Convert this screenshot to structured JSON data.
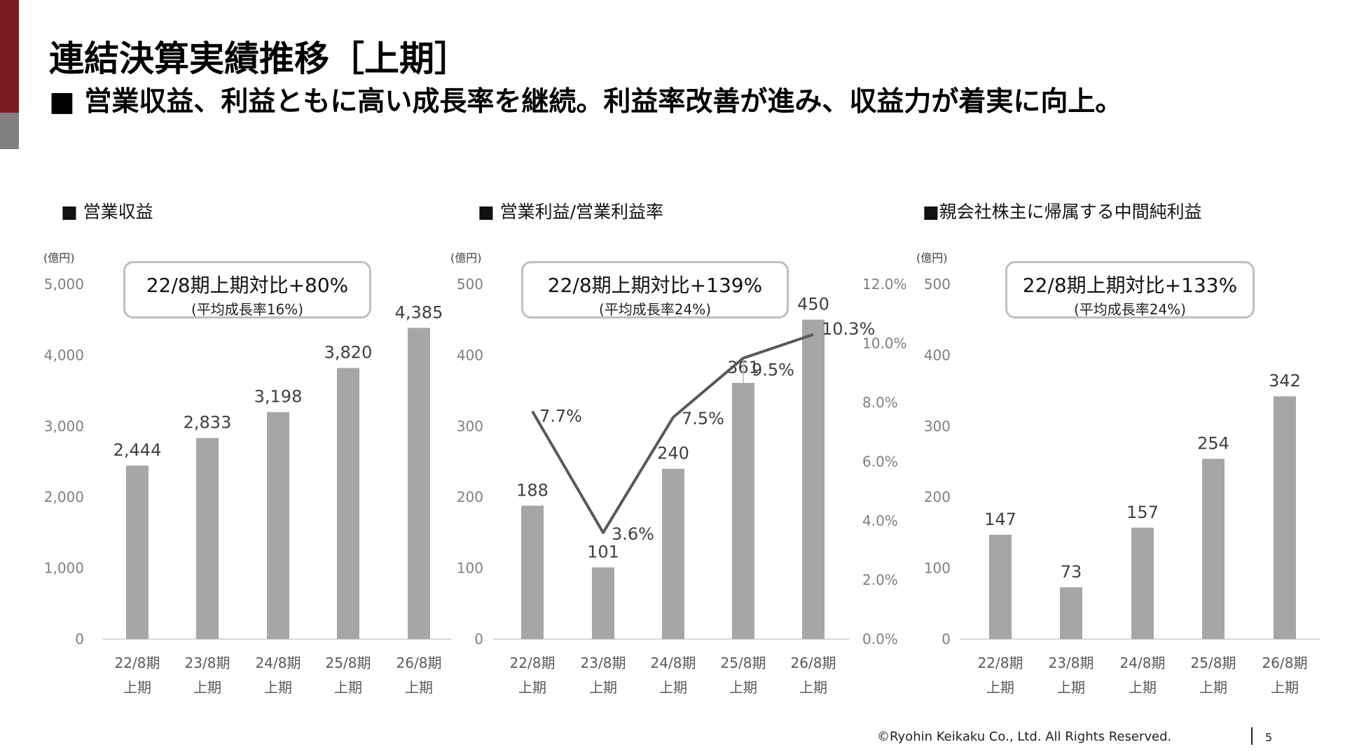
{
  "header": {
    "title": "連結決算実績推移［上期］",
    "subtitle": "■ 営業収益、利益ともに高い成長率を継続。利益率改善が進み、収益力が着実に向上。"
  },
  "colors": {
    "accent_red": "#7b1a22",
    "accent_gray": "#808080",
    "bar": "#a6a6a6",
    "line": "#595959"
  },
  "footer": {
    "copyright": "©Ryohin Keikaku Co., Ltd. All Rights Reserved.",
    "page": "5"
  },
  "callouts": [
    {
      "main": "22/8期上期対比+80%",
      "sub": "(平均成長率16%)"
    },
    {
      "main": "22/8期上期対比+139%",
      "sub": "(平均成長率24%)"
    },
    {
      "main": "22/8期上期対比+133%",
      "sub": "(平均成長率24%)"
    }
  ],
  "chart_data": [
    {
      "type": "bar",
      "title": "■ 営業収益",
      "unit": "(億円)",
      "categories": [
        [
          "22/8期",
          "上期"
        ],
        [
          "23/8期",
          "上期"
        ],
        [
          "24/8期",
          "上期"
        ],
        [
          "25/8期",
          "上期"
        ],
        [
          "26/8期",
          "上期"
        ]
      ],
      "values": [
        2444,
        2833,
        3198,
        3820,
        4385
      ],
      "value_labels": [
        "2,444",
        "2,833",
        "3,198",
        "3,820",
        "4,385"
      ],
      "ylim": [
        0,
        5000
      ],
      "yticks": [
        0,
        1000,
        2000,
        3000,
        4000,
        5000
      ],
      "ytick_labels": [
        "0",
        "1,000",
        "2,000",
        "3,000",
        "4,000",
        "5,000"
      ],
      "grid": false
    },
    {
      "type": "bar+line",
      "title": "■ 営業利益/営業利益率",
      "unit": "(億円)",
      "categories": [
        [
          "22/8期",
          "上期"
        ],
        [
          "23/8期",
          "上期"
        ],
        [
          "24/8期",
          "上期"
        ],
        [
          "25/8期",
          "上期"
        ],
        [
          "26/8期",
          "上期"
        ]
      ],
      "values": [
        188,
        101,
        240,
        361,
        450
      ],
      "value_labels": [
        "188",
        "101",
        "240",
        "361",
        "450"
      ],
      "ylim": [
        0,
        500
      ],
      "yticks": [
        0,
        100,
        200,
        300,
        400,
        500
      ],
      "ytick_labels": [
        "0",
        "100",
        "200",
        "300",
        "400",
        "500"
      ],
      "line_values": [
        7.7,
        3.6,
        7.5,
        9.5,
        10.3
      ],
      "line_labels": [
        "7.7%",
        "3.6%",
        "7.5%",
        "9.5%",
        "10.3%"
      ],
      "y2lim": [
        0,
        12
      ],
      "y2ticks": [
        0,
        2,
        4,
        6,
        8,
        10,
        12
      ],
      "y2tick_labels": [
        "0.0%",
        "2.0%",
        "4.0%",
        "6.0%",
        "8.0%",
        "10.0%",
        "12.0%"
      ],
      "grid": false
    },
    {
      "type": "bar",
      "title": "■親会社株主に帰属する中間純利益",
      "unit": "(億円)",
      "categories": [
        [
          "22/8期",
          "上期"
        ],
        [
          "23/8期",
          "上期"
        ],
        [
          "24/8期",
          "上期"
        ],
        [
          "25/8期",
          "上期"
        ],
        [
          "26/8期",
          "上期"
        ]
      ],
      "values": [
        147,
        73,
        157,
        254,
        342
      ],
      "value_labels": [
        "147",
        "73",
        "157",
        "254",
        "342"
      ],
      "ylim": [
        0,
        500
      ],
      "yticks": [
        0,
        100,
        200,
        300,
        400,
        500
      ],
      "ytick_labels": [
        "0",
        "100",
        "200",
        "300",
        "400",
        "500"
      ],
      "grid": false
    }
  ]
}
